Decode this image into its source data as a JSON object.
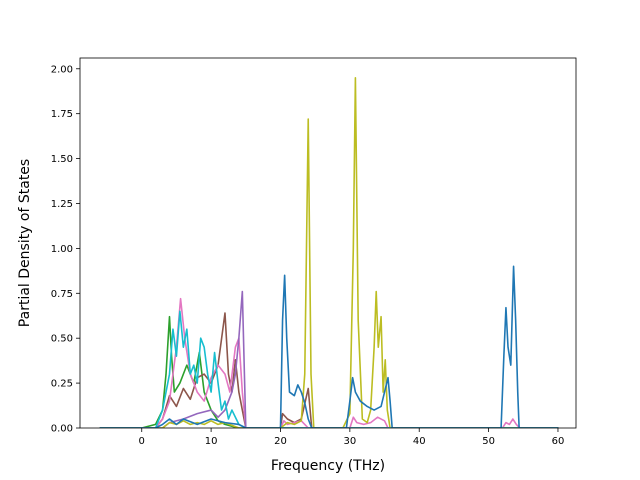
{
  "chart_data": {
    "type": "line",
    "title": "",
    "xlabel": "Frequency (THz)",
    "ylabel": "Partial Density of States",
    "xlim": [
      -8.9,
      62.6
    ],
    "ylim": [
      0.0,
      2.06
    ],
    "xticks": [
      0,
      10,
      20,
      30,
      40,
      50,
      60
    ],
    "xtick_labels": [
      "0",
      "10",
      "20",
      "30",
      "40",
      "50",
      "60"
    ],
    "yticks": [
      0.0,
      0.25,
      0.5,
      0.75,
      1.0,
      1.25,
      1.5,
      1.75,
      2.0
    ],
    "ytick_labels": [
      "0.00",
      "0.25",
      "0.50",
      "0.75",
      "1.00",
      "1.25",
      "1.50",
      "1.75",
      "2.00"
    ],
    "grid": false,
    "legend": "none",
    "series": [
      {
        "color": "#2ca02c",
        "points": [
          [
            -6,
            0
          ],
          [
            0,
            0
          ],
          [
            2,
            0.02
          ],
          [
            3,
            0.1
          ],
          [
            3.5,
            0.3
          ],
          [
            4,
            0.62
          ],
          [
            4.3,
            0.4
          ],
          [
            4.7,
            0.2
          ],
          [
            5.5,
            0.25
          ],
          [
            6.5,
            0.35
          ],
          [
            7.5,
            0.25
          ],
          [
            8.3,
            0.42
          ],
          [
            9,
            0.2
          ],
          [
            10,
            0.1
          ],
          [
            11,
            0.04
          ],
          [
            12,
            0.02
          ],
          [
            13,
            0.01
          ],
          [
            14,
            0
          ],
          [
            20,
            0
          ],
          [
            60,
            0
          ]
        ]
      },
      {
        "color": "#8c564b",
        "points": [
          [
            -6,
            0
          ],
          [
            2,
            0
          ],
          [
            3,
            0.05
          ],
          [
            4,
            0.18
          ],
          [
            5,
            0.12
          ],
          [
            6,
            0.22
          ],
          [
            7,
            0.16
          ],
          [
            8,
            0.28
          ],
          [
            9,
            0.3
          ],
          [
            10,
            0.25
          ],
          [
            11,
            0.35
          ],
          [
            12,
            0.64
          ],
          [
            12.5,
            0.3
          ],
          [
            13,
            0.2
          ],
          [
            13.5,
            0.38
          ],
          [
            14,
            0.2
          ],
          [
            14.5,
            0.1
          ],
          [
            15,
            0
          ],
          [
            20,
            0
          ],
          [
            20.3,
            0.08
          ],
          [
            21,
            0.05
          ],
          [
            22,
            0.03
          ],
          [
            23,
            0.05
          ],
          [
            24,
            0.22
          ],
          [
            24.5,
            0
          ],
          [
            30,
            0
          ],
          [
            60,
            0
          ]
        ]
      },
      {
        "color": "#e377c2",
        "points": [
          [
            -6,
            0
          ],
          [
            2,
            0
          ],
          [
            3,
            0.05
          ],
          [
            4,
            0.15
          ],
          [
            5,
            0.45
          ],
          [
            5.6,
            0.72
          ],
          [
            6.2,
            0.5
          ],
          [
            7,
            0.3
          ],
          [
            8,
            0.2
          ],
          [
            9,
            0.15
          ],
          [
            10,
            0.28
          ],
          [
            11,
            0.35
          ],
          [
            12,
            0.3
          ],
          [
            12.7,
            0.2
          ],
          [
            13.5,
            0.45
          ],
          [
            14,
            0.5
          ],
          [
            14.5,
            0.2
          ],
          [
            15,
            0
          ],
          [
            20,
            0
          ],
          [
            20.5,
            0.04
          ],
          [
            21,
            0.02
          ],
          [
            22,
            0.03
          ],
          [
            23,
            0.04
          ],
          [
            24,
            0
          ],
          [
            30,
            0
          ],
          [
            30.5,
            0.06
          ],
          [
            31,
            0.03
          ],
          [
            32,
            0.02
          ],
          [
            33,
            0.03
          ],
          [
            34,
            0.06
          ],
          [
            35,
            0.04
          ],
          [
            35.5,
            0
          ],
          [
            52,
            0
          ],
          [
            52.5,
            0.03
          ],
          [
            53,
            0.02
          ],
          [
            53.5,
            0.05
          ],
          [
            54,
            0.02
          ],
          [
            54.5,
            0
          ],
          [
            60,
            0
          ]
        ]
      },
      {
        "color": "#9467bd",
        "points": [
          [
            -6,
            0
          ],
          [
            3,
            0
          ],
          [
            4,
            0.03
          ],
          [
            6,
            0.05
          ],
          [
            8,
            0.08
          ],
          [
            10,
            0.1
          ],
          [
            11,
            0.06
          ],
          [
            12,
            0.1
          ],
          [
            13,
            0.2
          ],
          [
            13.5,
            0.3
          ],
          [
            14,
            0.5
          ],
          [
            14.5,
            0.76
          ],
          [
            14.8,
            0.3
          ],
          [
            15,
            0
          ],
          [
            60,
            0
          ]
        ]
      },
      {
        "color": "#bcbd22",
        "points": [
          [
            -6,
            0
          ],
          [
            3,
            0
          ],
          [
            4,
            0.03
          ],
          [
            5,
            0.02
          ],
          [
            6,
            0.04
          ],
          [
            7,
            0.02
          ],
          [
            8,
            0.03
          ],
          [
            9,
            0.02
          ],
          [
            10,
            0.04
          ],
          [
            11,
            0.02
          ],
          [
            12,
            0.03
          ],
          [
            14,
            0
          ],
          [
            20,
            0
          ],
          [
            21,
            0.03
          ],
          [
            22,
            0.02
          ],
          [
            23,
            0.04
          ],
          [
            23.5,
            0.3
          ],
          [
            24,
            1.72
          ],
          [
            24.4,
            0.3
          ],
          [
            24.8,
            0
          ],
          [
            29,
            0
          ],
          [
            30,
            0.08
          ],
          [
            30.5,
            1.0
          ],
          [
            30.8,
            1.95
          ],
          [
            31.2,
            0.6
          ],
          [
            31.8,
            0.05
          ],
          [
            32.5,
            0.03
          ],
          [
            33,
            0.1
          ],
          [
            33.5,
            0.45
          ],
          [
            33.8,
            0.76
          ],
          [
            34.1,
            0.45
          ],
          [
            34.5,
            0.62
          ],
          [
            34.8,
            0.2
          ],
          [
            35.1,
            0.38
          ],
          [
            35.4,
            0.1
          ],
          [
            35.8,
            0
          ],
          [
            60,
            0
          ]
        ]
      },
      {
        "color": "#17becf",
        "points": [
          [
            -6,
            0
          ],
          [
            2,
            0
          ],
          [
            3,
            0.1
          ],
          [
            4,
            0.3
          ],
          [
            4.5,
            0.55
          ],
          [
            5,
            0.4
          ],
          [
            5.5,
            0.65
          ],
          [
            6,
            0.45
          ],
          [
            6.5,
            0.55
          ],
          [
            7,
            0.3
          ],
          [
            7.5,
            0.35
          ],
          [
            8,
            0.25
          ],
          [
            8.5,
            0.5
          ],
          [
            9,
            0.45
          ],
          [
            9.5,
            0.3
          ],
          [
            10,
            0.2
          ],
          [
            10.5,
            0.42
          ],
          [
            11,
            0.25
          ],
          [
            11.5,
            0.1
          ],
          [
            12,
            0.15
          ],
          [
            12.5,
            0.05
          ],
          [
            13,
            0.1
          ],
          [
            14,
            0.02
          ],
          [
            15,
            0
          ],
          [
            60,
            0
          ]
        ]
      },
      {
        "color": "#1f77b4",
        "points": [
          [
            -6,
            0
          ],
          [
            2,
            0
          ],
          [
            3,
            0.02
          ],
          [
            4,
            0.05
          ],
          [
            5,
            0.02
          ],
          [
            6,
            0.05
          ],
          [
            8,
            0.02
          ],
          [
            10,
            0.05
          ],
          [
            12,
            0.03
          ],
          [
            14,
            0.02
          ],
          [
            15,
            0
          ],
          [
            20,
            0
          ],
          [
            20.3,
            0.6
          ],
          [
            20.6,
            0.85
          ],
          [
            20.9,
            0.5
          ],
          [
            21.3,
            0.2
          ],
          [
            22,
            0.18
          ],
          [
            22.5,
            0.24
          ],
          [
            23,
            0.2
          ],
          [
            23.5,
            0.14
          ],
          [
            24,
            0.05
          ],
          [
            24.5,
            0
          ],
          [
            29.5,
            0
          ],
          [
            30,
            0.15
          ],
          [
            30.4,
            0.28
          ],
          [
            30.8,
            0.2
          ],
          [
            31.5,
            0.15
          ],
          [
            32.5,
            0.12
          ],
          [
            33.5,
            0.1
          ],
          [
            34.5,
            0.12
          ],
          [
            35,
            0.2
          ],
          [
            35.5,
            0.28
          ],
          [
            35.8,
            0.15
          ],
          [
            36.1,
            0
          ],
          [
            51.8,
            0
          ],
          [
            52.2,
            0.4
          ],
          [
            52.5,
            0.67
          ],
          [
            52.8,
            0.45
          ],
          [
            53.2,
            0.35
          ],
          [
            53.6,
            0.9
          ],
          [
            53.9,
            0.6
          ],
          [
            54.2,
            0.2
          ],
          [
            54.4,
            0
          ],
          [
            60,
            0
          ]
        ]
      }
    ]
  }
}
